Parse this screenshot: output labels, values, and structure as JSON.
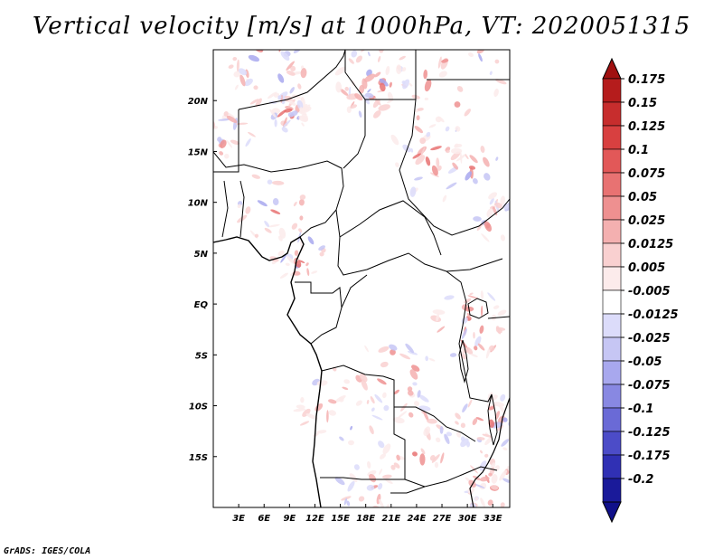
{
  "title": "Vertical velocity [m/s] at 1000hPa, VT: 2020051315",
  "footer": "GrADS: IGES/COLA",
  "map": {
    "lon_range": [
      0,
      35
    ],
    "lat_range": [
      -20,
      25
    ],
    "lon_ticks": [
      "3E",
      "6E",
      "9E",
      "12E",
      "15E",
      "18E",
      "21E",
      "24E",
      "27E",
      "30E",
      "33E"
    ],
    "lat_ticks": [
      "20N",
      "15N",
      "10N",
      "5N",
      "EQ",
      "5S",
      "10S",
      "15S"
    ]
  },
  "colorbar": {
    "labels": [
      "0.175",
      "0.15",
      "0.125",
      "0.1",
      "0.075",
      "0.05",
      "0.025",
      "0.0125",
      "0.005",
      "-0.005",
      "-0.0125",
      "-0.025",
      "-0.05",
      "-0.075",
      "-0.1",
      "-0.125",
      "-0.175",
      "-0.2"
    ],
    "colors": [
      "#b51c1c",
      "#c72d2d",
      "#d84040",
      "#e25858",
      "#e87272",
      "#ee9090",
      "#f4b0b0",
      "#f9d0d0",
      "#fcebeb",
      "#ffffff",
      "#dcdcfa",
      "#c6c6f4",
      "#a8a8ee",
      "#8888e2",
      "#6a6ad6",
      "#4c4cc8",
      "#3030b4",
      "#1a1a9a"
    ],
    "top_arrow_color": "#a01010",
    "bottom_arrow_color": "#10108a"
  }
}
